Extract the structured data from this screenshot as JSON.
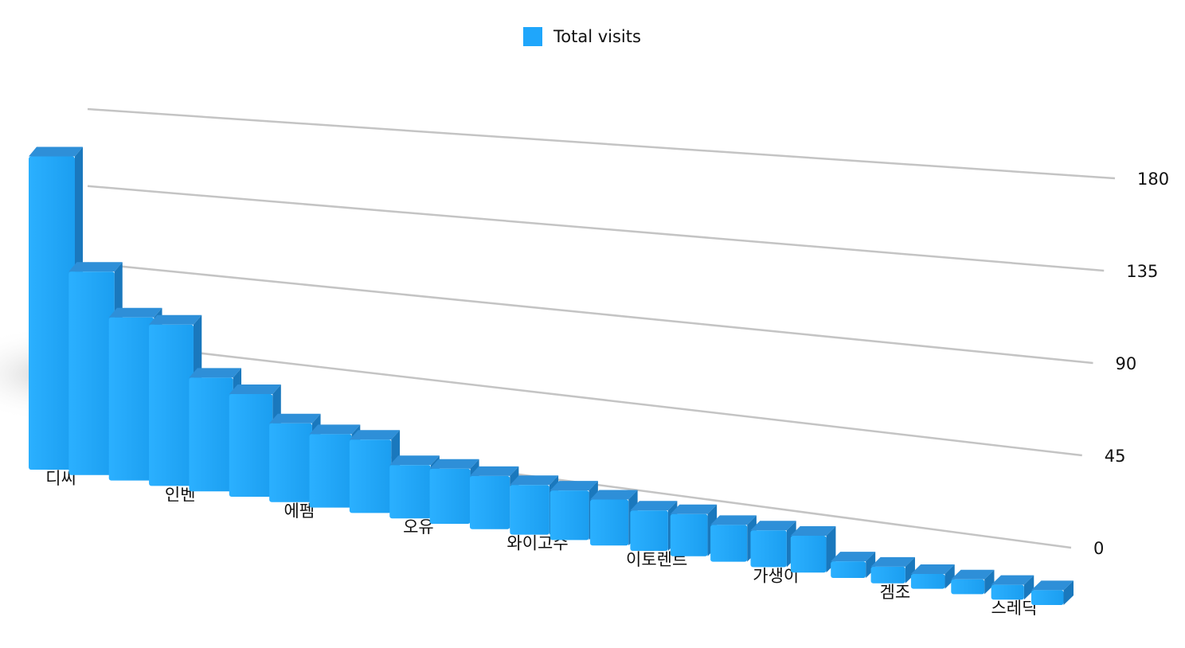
{
  "chart_data": {
    "type": "bar3d",
    "categories": [
      "디씨",
      null,
      null,
      "인벤",
      null,
      null,
      "에펨",
      null,
      null,
      "오유",
      null,
      null,
      "와이고수",
      null,
      null,
      "이토렌트",
      null,
      null,
      "가생이",
      null,
      null,
      "겜조",
      null,
      null,
      "스레딕",
      null
    ],
    "series": [
      {
        "name": "Total visits",
        "color": "#1fa6fb",
        "values": [
          165,
          105,
          83,
          82,
          56,
          50,
          37,
          34,
          34,
          23,
          24,
          23,
          21,
          21,
          19,
          16,
          17,
          14,
          14,
          14,
          3,
          3,
          2,
          2,
          2,
          2
        ]
      }
    ],
    "ylim": [
      0,
      180
    ],
    "yticks": [
      0,
      45,
      90,
      135,
      180
    ],
    "grid": true,
    "legend": "top"
  }
}
